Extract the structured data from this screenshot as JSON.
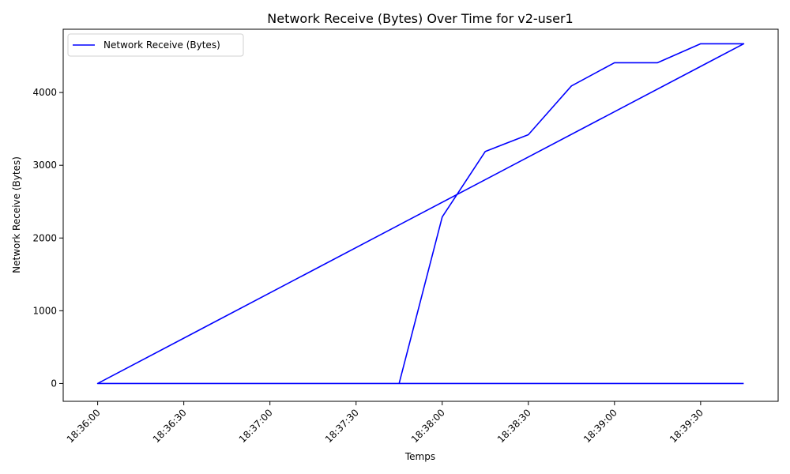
{
  "chart_data": {
    "type": "line",
    "title": "Network Receive (Bytes) Over Time for v2-user1",
    "xlabel": "Temps",
    "ylabel": "Network Receive (Bytes)",
    "x_ticks": [
      "18:36:00",
      "18:36:30",
      "18:37:00",
      "18:37:30",
      "18:38:00",
      "18:38:30",
      "18:39:00",
      "18:39:30"
    ],
    "y_ticks": [
      0,
      1000,
      2000,
      3000,
      4000
    ],
    "xlim": [
      "18:35:48",
      "18:39:57"
    ],
    "ylim": [
      -245,
      4870
    ],
    "grid": false,
    "legend_position": "upper-left",
    "color": "#0000ff",
    "series": [
      {
        "name": "Network Receive (Bytes)",
        "points": [
          {
            "x": "18:36:00",
            "y": 0
          },
          {
            "x": "18:37:45",
            "y": 0
          },
          {
            "x": "18:38:00",
            "y": 2290
          },
          {
            "x": "18:38:15",
            "y": 3190
          },
          {
            "x": "18:38:30",
            "y": 3420
          },
          {
            "x": "18:38:45",
            "y": 4090
          },
          {
            "x": "18:39:00",
            "y": 4410
          },
          {
            "x": "18:39:15",
            "y": 4410
          },
          {
            "x": "18:39:30",
            "y": 4670
          },
          {
            "x": "18:39:45",
            "y": 4670
          },
          {
            "x": "18:36:00",
            "y": 0
          },
          {
            "x": "18:39:45",
            "y": 4670
          },
          {
            "x": "18:36:00",
            "y": 0
          },
          {
            "x": "18:39:45",
            "y": 0
          }
        ]
      }
    ]
  }
}
